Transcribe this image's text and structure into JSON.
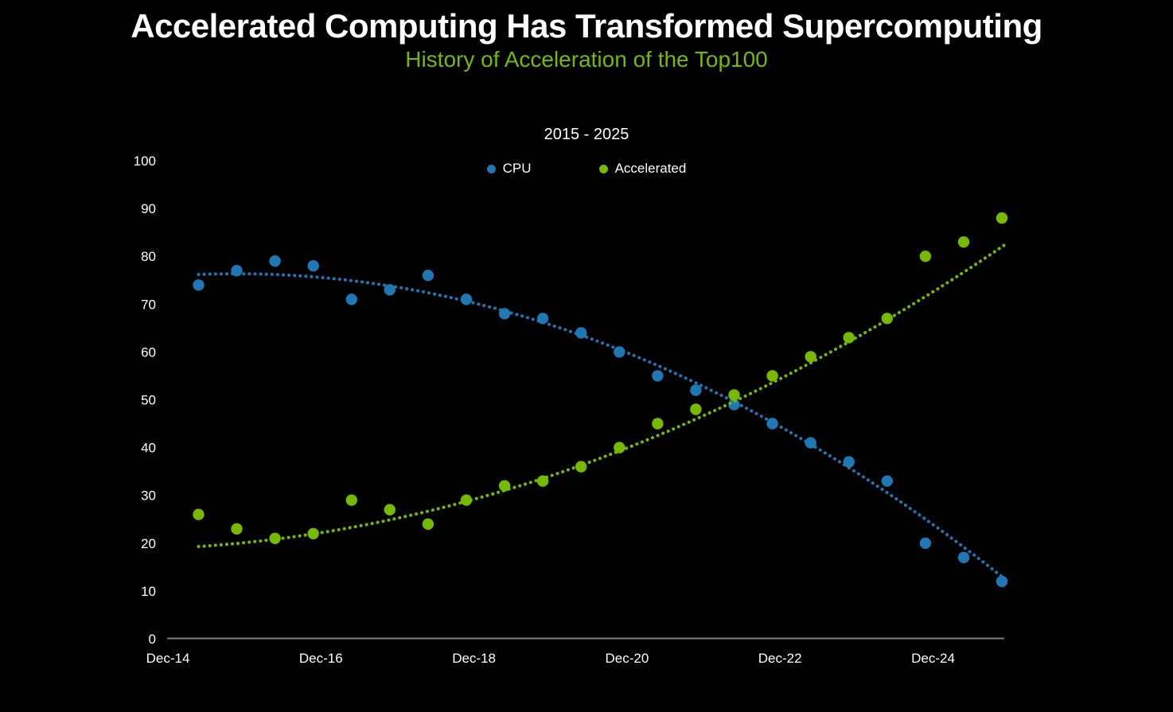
{
  "chart_data": {
    "type": "scatter",
    "title": "Accelerated Computing Has Transformed Supercomputing",
    "subtitle": "History of Acceleration of the Top100",
    "range_label": "2015 - 2025",
    "grid": false,
    "legend_position": "top-center",
    "colors": {
      "background": "#000000",
      "title_text": "#ffffff",
      "subtitle_text": "#76b900",
      "cpu_blue": "#1f77b4",
      "accelerated_green": "#76b900",
      "axis_line": "#7f7f7f",
      "tick_text": "#ffffff"
    },
    "x_axis": {
      "tick_labels": [
        "Dec-14",
        "Dec-16",
        "Dec-18",
        "Dec-20",
        "Dec-22",
        "Dec-24"
      ],
      "tick_years": [
        2015,
        2017,
        2019,
        2021,
        2023,
        2025
      ]
    },
    "y_axis": {
      "ticks": [
        0,
        10,
        20,
        30,
        40,
        50,
        60,
        70,
        80,
        90,
        100
      ],
      "min": 0,
      "max": 100
    },
    "x": [
      2015.4,
      2015.9,
      2016.4,
      2016.9,
      2017.4,
      2017.9,
      2018.4,
      2018.9,
      2019.4,
      2019.9,
      2020.4,
      2020.9,
      2021.4,
      2021.9,
      2022.4,
      2022.9,
      2023.4,
      2023.9,
      2024.4,
      2024.9,
      2025.4,
      2025.9
    ],
    "series": [
      {
        "name": "CPU",
        "color": "#1f77b4",
        "marker": "dot",
        "values": [
          74,
          77,
          79,
          78,
          71,
          73,
          76,
          71,
          68,
          67,
          64,
          60,
          55,
          52,
          49,
          45,
          41,
          37,
          33,
          20,
          17,
          12
        ],
        "trend_anchors": [
          [
            2015.4,
            76.2
          ],
          [
            2020.4,
            63.5
          ],
          [
            2025.9,
            13
          ]
        ]
      },
      {
        "name": "Accelerated",
        "color": "#76b900",
        "marker": "dot",
        "values": [
          26,
          23,
          21,
          22,
          29,
          27,
          24,
          29,
          32,
          33,
          36,
          40,
          45,
          48,
          51,
          55,
          59,
          63,
          67,
          80,
          83,
          88
        ],
        "trend_anchors": [
          [
            2015.4,
            19.3
          ],
          [
            2020.4,
            36.3
          ],
          [
            2025.9,
            82
          ]
        ]
      }
    ]
  }
}
